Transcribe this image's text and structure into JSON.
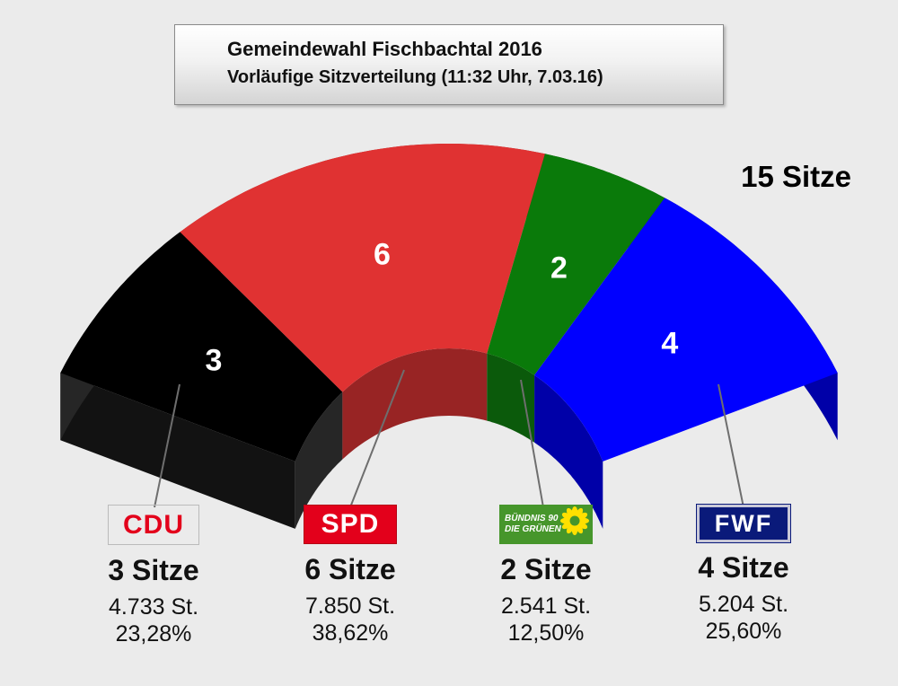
{
  "header": {
    "title": "Gemeindewahl Fischbachtal 2016",
    "subtitle": "Vorläufige Sitzverteilung (11:32 Uhr, 7.03.16)"
  },
  "total_seats_label": "15 Sitze",
  "chart_data": {
    "type": "pie",
    "variant": "semicircle-3d",
    "title": "Gemeindewahl Fischbachtal 2016",
    "subtitle": "Vorläufige Sitzverteilung (11:32 Uhr, 7.03.16)",
    "total_seats": 15,
    "categories": [
      "CDU",
      "SPD",
      "BÜNDNIS 90 DIE GRÜNEN",
      "FWF"
    ],
    "values": [
      3,
      6,
      2,
      4
    ],
    "colors": [
      "#000000",
      "#e03232",
      "#0a7a0a",
      "#0000ff"
    ],
    "side_colors": [
      "#262626",
      "#982424",
      "#0b5a0b",
      "#0000a8"
    ],
    "parties": [
      {
        "logo": "CDU",
        "seats": 3,
        "seats_label": "3 Sitze",
        "votes": "4.733 St.",
        "percent": "23,28%",
        "logo_bg": "#ffffff",
        "logo_fg": "#e3001b"
      },
      {
        "logo": "SPD",
        "seats": 6,
        "seats_label": "6 Sitze",
        "votes": "7.850 St.",
        "percent": "38,62%",
        "logo_bg": "#e3001b",
        "logo_fg": "#ffffff"
      },
      {
        "logo": "BÜNDNIS 90 DIE GRÜNEN",
        "logo_line1": "BÜNDNIS 90",
        "logo_line2": "DIE GRÜNEN",
        "seats": 2,
        "seats_label": "2 Sitze",
        "votes": "2.541 St.",
        "percent": "12,50%",
        "logo_bg": "#46962b",
        "logo_fg": "#ffffff"
      },
      {
        "logo": "FWF",
        "seats": 4,
        "seats_label": "4 Sitze",
        "votes": "5.204 St.",
        "percent": "25,60%",
        "logo_bg": "#0a1a7a",
        "logo_fg": "#ffffff"
      }
    ]
  }
}
